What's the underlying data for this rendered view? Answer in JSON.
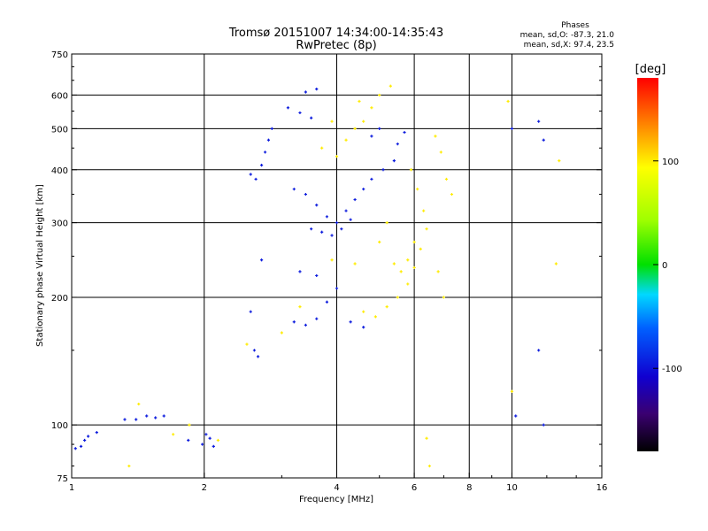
{
  "chart_data": {
    "type": "scatter",
    "title": "Tromsø 20151007 14:34:00-14:35:43",
    "subtitle": "RwPretec (8p)",
    "xlabel": "Frequency [MHz]",
    "ylabel": "Stationary phase Virtual Height [km]",
    "x_scale": "log",
    "y_scale": "log",
    "xlim": [
      1,
      16
    ],
    "ylim": [
      75,
      750
    ],
    "x_ticks": [
      1,
      2,
      4,
      6,
      8,
      10,
      16
    ],
    "x_tick_labels": [
      "1",
      "2",
      "4",
      "6",
      "8",
      "10",
      "16"
    ],
    "x_grid": [
      2,
      4,
      6,
      8,
      10
    ],
    "y_ticks": [
      75,
      100,
      200,
      300,
      400,
      500,
      600,
      750
    ],
    "y_tick_labels": [
      "75",
      "100",
      "200",
      "300",
      "400",
      "500",
      "600",
      "750"
    ],
    "y_grid": [
      100,
      200,
      300,
      400,
      500,
      600
    ],
    "grid": true,
    "phase_stats": {
      "title": "Phases",
      "line_o": "mean, sd,O: -87.3, 21.0",
      "line_x": "mean, sd,X:  97.4, 23.5"
    },
    "colorbar": {
      "label": "[deg]",
      "range": [
        -180,
        180
      ],
      "ticks": [
        100,
        0,
        -100
      ],
      "tick_labels": [
        "100",
        "0",
        "-100"
      ]
    },
    "series": [
      {
        "phase_mode": "O",
        "color_phase": -95,
        "points": [
          [
            1.02,
            88
          ],
          [
            1.05,
            89
          ],
          [
            1.07,
            92
          ],
          [
            1.09,
            94
          ],
          [
            1.14,
            96
          ],
          [
            1.32,
            103
          ],
          [
            1.4,
            103
          ],
          [
            1.48,
            105
          ],
          [
            1.55,
            104
          ],
          [
            1.62,
            105
          ],
          [
            1.98,
            90
          ],
          [
            2.02,
            95
          ],
          [
            2.06,
            93
          ],
          [
            2.1,
            89
          ],
          [
            1.84,
            92
          ],
          [
            2.55,
            390
          ],
          [
            2.62,
            380
          ],
          [
            2.7,
            410
          ],
          [
            2.75,
            440
          ],
          [
            2.8,
            470
          ],
          [
            2.85,
            500
          ],
          [
            2.6,
            150
          ],
          [
            2.65,
            145
          ],
          [
            2.55,
            185
          ],
          [
            2.7,
            245
          ],
          [
            3.1,
            560
          ],
          [
            3.3,
            545
          ],
          [
            3.5,
            530
          ],
          [
            3.4,
            610
          ],
          [
            3.6,
            620
          ],
          [
            3.2,
            360
          ],
          [
            3.4,
            350
          ],
          [
            3.6,
            330
          ],
          [
            3.8,
            310
          ],
          [
            4.0,
            300
          ],
          [
            4.2,
            320
          ],
          [
            4.4,
            340
          ],
          [
            4.6,
            360
          ],
          [
            4.8,
            380
          ],
          [
            5.1,
            400
          ],
          [
            5.4,
            420
          ],
          [
            3.5,
            290
          ],
          [
            3.7,
            285
          ],
          [
            3.9,
            280
          ],
          [
            4.1,
            290
          ],
          [
            4.3,
            305
          ],
          [
            3.2,
            175
          ],
          [
            3.4,
            172
          ],
          [
            3.6,
            178
          ],
          [
            3.8,
            195
          ],
          [
            4.0,
            210
          ],
          [
            4.3,
            175
          ],
          [
            4.6,
            170
          ],
          [
            3.3,
            230
          ],
          [
            3.6,
            225
          ],
          [
            5.5,
            460
          ],
          [
            5.7,
            490
          ],
          [
            4.8,
            480
          ],
          [
            5.0,
            500
          ],
          [
            10.0,
            500
          ],
          [
            11.5,
            520
          ],
          [
            11.8,
            470
          ],
          [
            10.2,
            105
          ],
          [
            11.8,
            100
          ],
          [
            11.5,
            150
          ]
        ]
      },
      {
        "phase_mode": "X",
        "color_phase": 100,
        "points": [
          [
            4.6,
            185
          ],
          [
            4.9,
            180
          ],
          [
            5.2,
            190
          ],
          [
            5.5,
            200
          ],
          [
            5.8,
            215
          ],
          [
            6.0,
            235
          ],
          [
            6.2,
            260
          ],
          [
            6.4,
            290
          ],
          [
            6.3,
            320
          ],
          [
            6.1,
            360
          ],
          [
            5.9,
            400
          ],
          [
            5.4,
            240
          ],
          [
            5.6,
            230
          ],
          [
            5.8,
            245
          ],
          [
            6.0,
            270
          ],
          [
            5.2,
            300
          ],
          [
            5.0,
            270
          ],
          [
            4.4,
            500
          ],
          [
            4.6,
            520
          ],
          [
            4.8,
            560
          ],
          [
            5.0,
            600
          ],
          [
            5.3,
            630
          ],
          [
            3.7,
            450
          ],
          [
            4.0,
            430
          ],
          [
            4.2,
            470
          ],
          [
            3.9,
            520
          ],
          [
            4.5,
            580
          ],
          [
            6.7,
            480
          ],
          [
            6.9,
            440
          ],
          [
            7.1,
            380
          ],
          [
            7.3,
            350
          ],
          [
            6.8,
            230
          ],
          [
            7.0,
            200
          ],
          [
            2.5,
            155
          ],
          [
            3.0,
            165
          ],
          [
            3.3,
            190
          ],
          [
            3.9,
            245
          ],
          [
            4.4,
            240
          ],
          [
            1.42,
            112
          ],
          [
            1.7,
            95
          ],
          [
            1.35,
            80
          ],
          [
            2.15,
            92
          ],
          [
            1.85,
            100
          ],
          [
            6.4,
            93
          ],
          [
            6.5,
            80
          ],
          [
            12.8,
            420
          ],
          [
            12.6,
            240
          ],
          [
            9.8,
            580
          ],
          [
            10.0,
            120
          ]
        ]
      }
    ]
  }
}
